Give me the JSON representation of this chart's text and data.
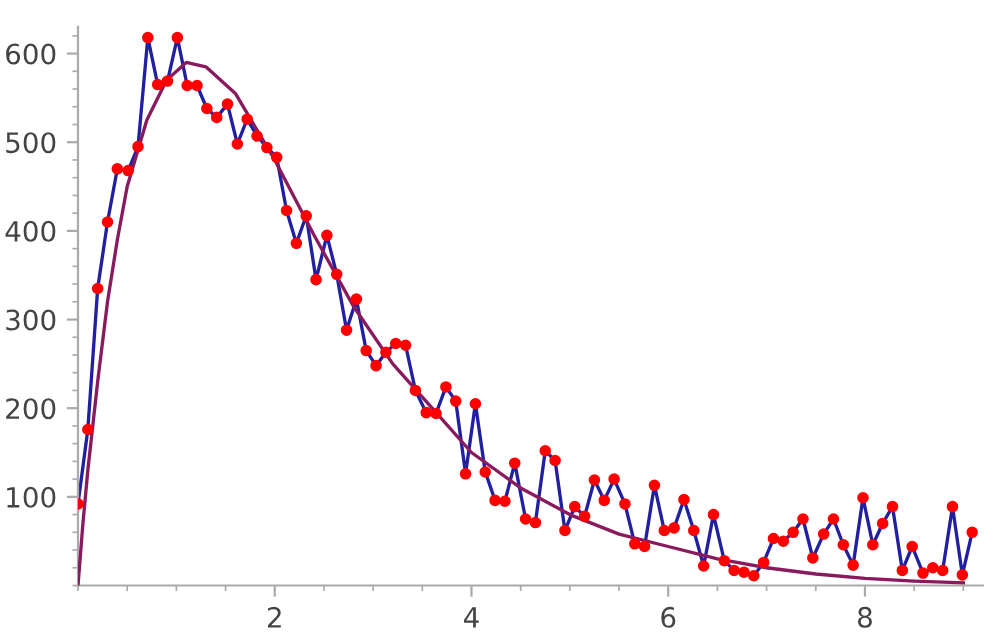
{
  "chart_data": {
    "type": "line",
    "xlim": [
      0,
      9.2
    ],
    "ylim": [
      0,
      630
    ],
    "xticks": [
      2,
      4,
      6,
      8
    ],
    "yticks": [
      100,
      200,
      300,
      400,
      500,
      600
    ],
    "grid": false,
    "legend": false,
    "series": [
      {
        "color": "#2020a0",
        "line_style": "solid",
        "marker": "none",
        "x": [
          0,
          0.1,
          0.2,
          0.3,
          0.4,
          0.51,
          0.61,
          0.71,
          0.81,
          0.91,
          1.01,
          1.11,
          1.21,
          1.31,
          1.41,
          1.52,
          1.62,
          1.72,
          1.82,
          1.92,
          2.02,
          2.12,
          2.22,
          2.32,
          2.42,
          2.53,
          2.63,
          2.73,
          2.83,
          2.93,
          3.03,
          3.13,
          3.23,
          3.33,
          3.43,
          3.54,
          3.64,
          3.74,
          3.84,
          3.94,
          4.04,
          4.14,
          4.24,
          4.34,
          4.44,
          4.55,
          4.65,
          4.75,
          4.85,
          4.95,
          5.05,
          5.15,
          5.25,
          5.35,
          5.45,
          5.56,
          5.66,
          5.76,
          5.86,
          5.96,
          6.06,
          6.16,
          6.26,
          6.36,
          6.46,
          6.57,
          6.67,
          6.77,
          6.87,
          6.97,
          7.07,
          7.17,
          7.27,
          7.37,
          7.47,
          7.58,
          7.68,
          7.78,
          7.88,
          7.98,
          8.08,
          8.18,
          8.28,
          8.38,
          8.48,
          8.59,
          8.69,
          8.79,
          8.89,
          8.99,
          9.09
        ],
        "values": [
          92,
          176,
          335,
          410,
          470,
          468,
          495,
          618,
          565,
          569,
          618,
          564,
          564,
          538,
          528,
          543,
          498,
          526,
          507,
          494,
          483,
          423,
          386,
          417,
          345,
          395,
          351,
          288,
          323,
          265,
          248,
          263,
          273,
          271,
          220,
          195,
          194,
          224,
          208,
          126,
          205,
          128,
          96,
          95,
          138,
          75,
          71,
          152,
          141,
          62,
          89,
          78,
          119,
          96,
          120,
          92,
          47,
          44,
          113,
          62,
          65,
          97,
          62,
          22,
          80,
          28,
          17,
          15,
          11,
          26,
          53,
          50,
          60,
          75,
          31,
          58,
          75,
          46,
          23,
          99,
          46,
          70,
          89,
          17,
          44,
          14,
          20,
          17,
          89,
          12,
          60
        ]
      },
      {
        "type": "scatter",
        "color": "#ff0000",
        "marker": "circle",
        "x": [
          0,
          0.1,
          0.2,
          0.3,
          0.4,
          0.51,
          0.61,
          0.71,
          0.81,
          0.91,
          1.01,
          1.11,
          1.21,
          1.31,
          1.41,
          1.52,
          1.62,
          1.72,
          1.82,
          1.92,
          2.02,
          2.12,
          2.22,
          2.32,
          2.42,
          2.53,
          2.63,
          2.73,
          2.83,
          2.93,
          3.03,
          3.13,
          3.23,
          3.33,
          3.43,
          3.54,
          3.64,
          3.74,
          3.84,
          3.94,
          4.04,
          4.14,
          4.24,
          4.34,
          4.44,
          4.55,
          4.65,
          4.75,
          4.85,
          4.95,
          5.05,
          5.15,
          5.25,
          5.35,
          5.45,
          5.56,
          5.66,
          5.76,
          5.86,
          5.96,
          6.06,
          6.16,
          6.26,
          6.36,
          6.46,
          6.57,
          6.67,
          6.77,
          6.87,
          6.97,
          7.07,
          7.17,
          7.27,
          7.37,
          7.47,
          7.58,
          7.68,
          7.78,
          7.88,
          7.98,
          8.08,
          8.18,
          8.28,
          8.38,
          8.48,
          8.59,
          8.69,
          8.79,
          8.89,
          8.99,
          9.09
        ],
        "values": [
          92,
          176,
          335,
          410,
          470,
          468,
          495,
          618,
          565,
          569,
          618,
          564,
          564,
          538,
          528,
          543,
          498,
          526,
          507,
          494,
          483,
          423,
          386,
          417,
          345,
          395,
          351,
          288,
          323,
          265,
          248,
          263,
          273,
          271,
          220,
          195,
          194,
          224,
          208,
          126,
          205,
          128,
          96,
          95,
          138,
          75,
          71,
          152,
          141,
          62,
          89,
          78,
          119,
          96,
          120,
          92,
          47,
          44,
          113,
          62,
          65,
          97,
          62,
          22,
          80,
          28,
          17,
          15,
          11,
          26,
          53,
          50,
          60,
          75,
          31,
          58,
          75,
          46,
          23,
          99,
          46,
          70,
          89,
          17,
          44,
          14,
          20,
          17,
          89,
          12,
          60
        ]
      },
      {
        "color": "#8a1a5e",
        "line_style": "solid",
        "marker": "none",
        "x": [
          0,
          0.05,
          0.1,
          0.2,
          0.3,
          0.4,
          0.5,
          0.7,
          0.9,
          1.1,
          1.3,
          1.6,
          2.0,
          2.4,
          2.8,
          3.2,
          3.6,
          4.0,
          4.5,
          5.0,
          5.5,
          6.0,
          6.5,
          7.0,
          7.5,
          8.0,
          8.5,
          9.0
        ],
        "values": [
          0,
          70,
          130,
          230,
          320,
          390,
          450,
          525,
          570,
          590,
          585,
          555,
          480,
          395,
          315,
          250,
          200,
          150,
          110,
          80,
          58,
          44,
          30,
          20,
          13,
          8,
          5,
          3
        ]
      }
    ]
  }
}
